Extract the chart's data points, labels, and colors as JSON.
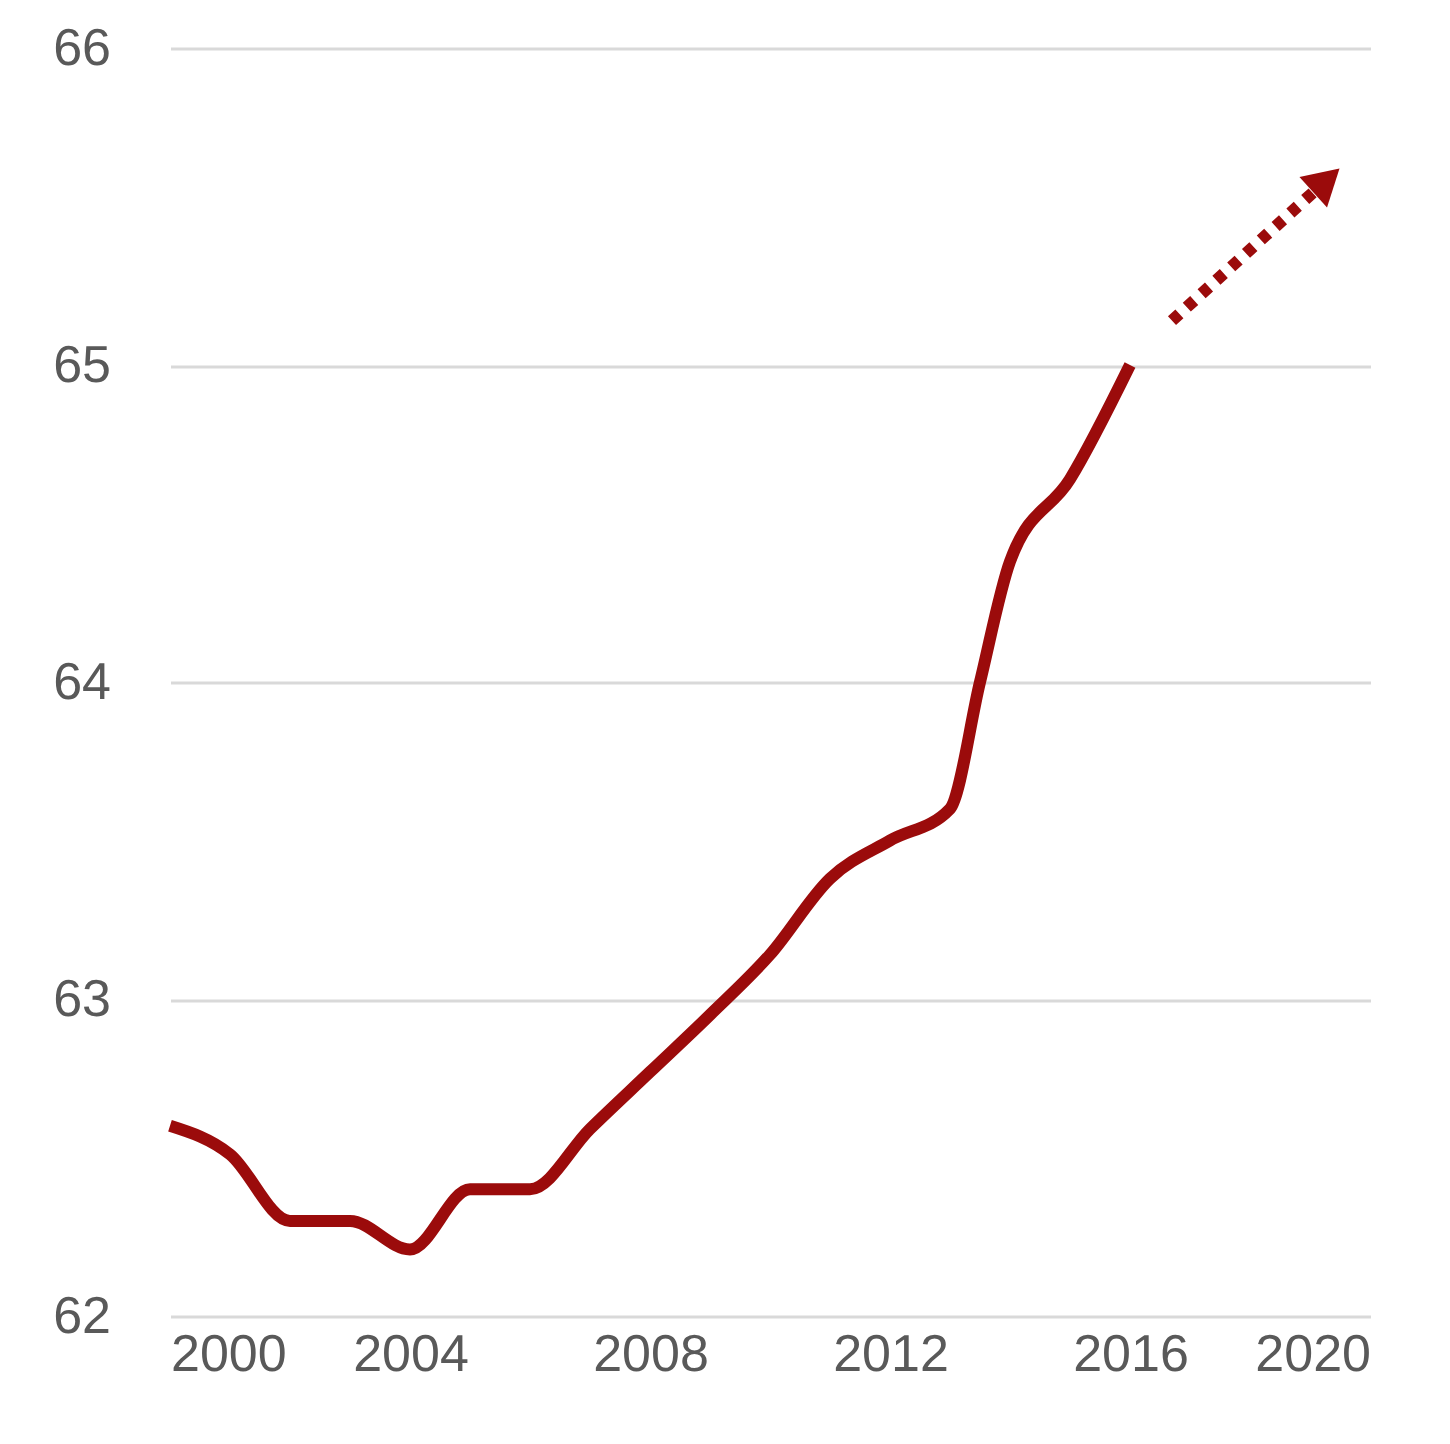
{
  "chart_data": {
    "type": "line",
    "xlim": [
      2000,
      2020
    ],
    "xticks": [
      2000,
      2004,
      2008,
      2012,
      2016,
      2020
    ],
    "ylim": [
      62,
      66
    ],
    "yticks": [
      62,
      63,
      64,
      65,
      66
    ],
    "grid": "y",
    "series": [
      {
        "color": "#9b0b0b",
        "line_style": "solid",
        "x": [
          2000,
          2001,
          2002,
          2003,
          2004,
          2005,
          2006,
          2007,
          2008,
          2009,
          2010,
          2011,
          2012,
          2013,
          2013.5,
          2014,
          2015,
          2016
        ],
        "values": [
          62.6,
          62.51,
          62.3,
          62.3,
          62.21,
          62.4,
          62.4,
          62.59,
          62.77,
          62.95,
          63.14,
          63.38,
          63.5,
          63.6,
          64.0,
          64.38,
          64.64,
          65.0
        ]
      },
      {
        "color": "#9b0b0b",
        "line_style": "dotted",
        "marker": "triangle",
        "x": [
          2016.7,
          2019.2
        ],
        "values": [
          65.14,
          65.57
        ]
      }
    ]
  }
}
